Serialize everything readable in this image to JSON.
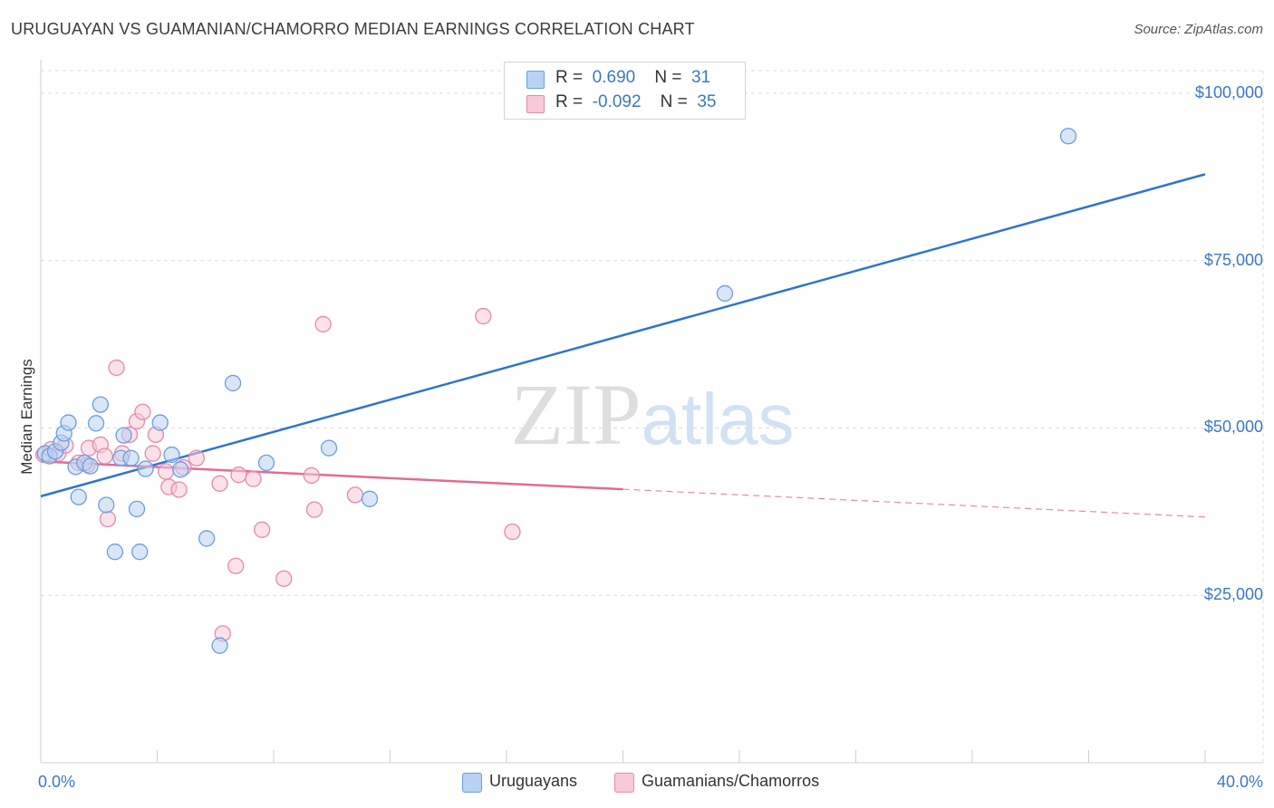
{
  "chart_data": {
    "type": "scatter",
    "title": "URUGUAYAN VS GUAMANIAN/CHAMORRO MEDIAN EARNINGS CORRELATION CHART",
    "source": "Source: ZipAtlas.com",
    "xlabel": "",
    "ylabel": "Median Earnings",
    "xlim": [
      0,
      40
    ],
    "ylim": [
      0,
      105000
    ],
    "x_tick_labels": [
      "0.0%",
      "40.0%"
    ],
    "y_ticks": [
      25000,
      50000,
      75000,
      100000
    ],
    "y_tick_labels": [
      "$25,000",
      "$50,000",
      "$75,000",
      "$100,000"
    ],
    "watermark": "ZIPatlas",
    "legend": {
      "rows": [
        {
          "r_label": "R =",
          "r_value": "0.690",
          "n_label": "N =",
          "n_value": "31"
        },
        {
          "r_label": "R =",
          "r_value": "-0.092",
          "n_label": "N =",
          "n_value": "35"
        }
      ]
    },
    "series": [
      {
        "name": "Uruguayans",
        "color": "#6a9ee0",
        "fill": "#b9d2f3",
        "line_color": "#2e74d0",
        "trend": {
          "x0": 0,
          "y0": 39800,
          "x1": 40,
          "y1": 87900,
          "solid_until": 40
        },
        "points": [
          {
            "x": 0.15,
            "y": 46200
          },
          {
            "x": 0.3,
            "y": 45800
          },
          {
            "x": 0.5,
            "y": 46500
          },
          {
            "x": 0.7,
            "y": 47800
          },
          {
            "x": 0.8,
            "y": 49200
          },
          {
            "x": 0.95,
            "y": 50800
          },
          {
            "x": 1.2,
            "y": 44200
          },
          {
            "x": 1.3,
            "y": 39700
          },
          {
            "x": 1.5,
            "y": 44800
          },
          {
            "x": 1.7,
            "y": 44300
          },
          {
            "x": 1.9,
            "y": 50700
          },
          {
            "x": 2.05,
            "y": 53500
          },
          {
            "x": 2.25,
            "y": 38500
          },
          {
            "x": 2.55,
            "y": 31500
          },
          {
            "x": 2.75,
            "y": 45500
          },
          {
            "x": 2.85,
            "y": 48900
          },
          {
            "x": 3.1,
            "y": 45500
          },
          {
            "x": 3.3,
            "y": 37900
          },
          {
            "x": 3.4,
            "y": 31500
          },
          {
            "x": 3.6,
            "y": 43900
          },
          {
            "x": 4.1,
            "y": 50800
          },
          {
            "x": 4.5,
            "y": 46000
          },
          {
            "x": 4.8,
            "y": 43800
          },
          {
            "x": 5.7,
            "y": 33500
          },
          {
            "x": 6.15,
            "y": 17500
          },
          {
            "x": 6.6,
            "y": 56700
          },
          {
            "x": 7.75,
            "y": 44800
          },
          {
            "x": 9.9,
            "y": 47000
          },
          {
            "x": 11.3,
            "y": 39400
          },
          {
            "x": 23.5,
            "y": 70100
          },
          {
            "x": 35.3,
            "y": 93600
          }
        ]
      },
      {
        "name": "Guamanians/Chamorros",
        "color": "#e889a8",
        "fill": "#f8c9d8",
        "line_color": "#e46a95",
        "trend": {
          "x0": 0,
          "y0": 45000,
          "x1": 40,
          "y1": 36700,
          "solid_until": 20
        },
        "points": [
          {
            "x": 0.1,
            "y": 46000
          },
          {
            "x": 0.35,
            "y": 46800
          },
          {
            "x": 0.6,
            "y": 46200
          },
          {
            "x": 0.85,
            "y": 47400
          },
          {
            "x": 1.3,
            "y": 44800
          },
          {
            "x": 1.6,
            "y": 44500
          },
          {
            "x": 1.65,
            "y": 47000
          },
          {
            "x": 2.05,
            "y": 47500
          },
          {
            "x": 2.2,
            "y": 45800
          },
          {
            "x": 2.3,
            "y": 36400
          },
          {
            "x": 2.6,
            "y": 59000
          },
          {
            "x": 2.8,
            "y": 46200
          },
          {
            "x": 3.05,
            "y": 49000
          },
          {
            "x": 3.3,
            "y": 51000
          },
          {
            "x": 3.5,
            "y": 52400
          },
          {
            "x": 3.85,
            "y": 46200
          },
          {
            "x": 3.95,
            "y": 49000
          },
          {
            "x": 4.3,
            "y": 43500
          },
          {
            "x": 4.4,
            "y": 41200
          },
          {
            "x": 4.75,
            "y": 40800
          },
          {
            "x": 4.9,
            "y": 44100
          },
          {
            "x": 5.35,
            "y": 45500
          },
          {
            "x": 6.15,
            "y": 41700
          },
          {
            "x": 6.25,
            "y": 19300
          },
          {
            "x": 6.7,
            "y": 29400
          },
          {
            "x": 6.8,
            "y": 43000
          },
          {
            "x": 7.3,
            "y": 42400
          },
          {
            "x": 7.6,
            "y": 34800
          },
          {
            "x": 8.35,
            "y": 27500
          },
          {
            "x": 9.3,
            "y": 42900
          },
          {
            "x": 9.4,
            "y": 37800
          },
          {
            "x": 9.7,
            "y": 65500
          },
          {
            "x": 10.8,
            "y": 40000
          },
          {
            "x": 15.2,
            "y": 66700
          },
          {
            "x": 16.2,
            "y": 34500
          }
        ]
      }
    ]
  }
}
